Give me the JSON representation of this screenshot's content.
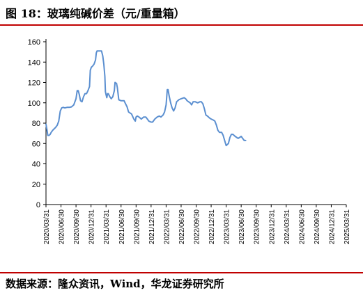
{
  "header": {
    "title": "图 18：玻璃纯碱价差（元/重量箱）"
  },
  "footer": {
    "source": "数据来源：隆众资讯，Wind，华龙证券研究所"
  },
  "colors": {
    "line": "#5b8fd0",
    "accent_rule": "#c00000",
    "axis": "#000000"
  },
  "chart_data": {
    "type": "line",
    "title": "",
    "xlabel": "",
    "ylabel": "",
    "ylim": [
      0,
      160
    ],
    "yticks": [
      0,
      20,
      40,
      60,
      80,
      100,
      120,
      140,
      160
    ],
    "grid": false,
    "legend": "none",
    "x_tick_labels": [
      "2020/03/31",
      "2020/06/30",
      "2020/09/30",
      "2020/12/31",
      "2021/03/31",
      "2021/06/30",
      "2021/09/30",
      "2021/12/31",
      "2022/03/31",
      "2022/06/30",
      "2022/09/30",
      "2022/12/31",
      "2023/03/31",
      "2023/06/30",
      "2023/09/30",
      "2023/12/31",
      "2024/03/31",
      "2024/06/30",
      "2024/09/30",
      "2024/12/31",
      "2025/03/31"
    ],
    "series": [
      {
        "name": "",
        "values": [
          [
            0.0,
            79
          ],
          [
            0.06,
            74
          ],
          [
            0.12,
            68
          ],
          [
            0.2,
            68
          ],
          [
            0.28,
            69
          ],
          [
            0.35,
            71
          ],
          [
            0.45,
            73
          ],
          [
            0.55,
            74.5
          ],
          [
            0.65,
            76
          ],
          [
            0.75,
            78
          ],
          [
            0.85,
            82
          ],
          [
            0.95,
            92
          ],
          [
            1.05,
            95
          ],
          [
            1.15,
            95.5
          ],
          [
            1.25,
            95
          ],
          [
            1.4,
            95.5
          ],
          [
            1.55,
            95.5
          ],
          [
            1.7,
            96
          ],
          [
            1.85,
            98
          ],
          [
            2.0,
            104
          ],
          [
            2.08,
            112
          ],
          [
            2.15,
            112
          ],
          [
            2.22,
            108
          ],
          [
            2.3,
            102
          ],
          [
            2.4,
            101
          ],
          [
            2.5,
            106
          ],
          [
            2.6,
            109
          ],
          [
            2.7,
            109
          ],
          [
            2.8,
            112
          ],
          [
            2.9,
            116
          ],
          [
            2.95,
            132
          ],
          [
            3.02,
            135
          ],
          [
            3.1,
            136
          ],
          [
            3.2,
            138
          ],
          [
            3.3,
            142
          ],
          [
            3.35,
            149
          ],
          [
            3.4,
            151
          ],
          [
            3.5,
            151
          ],
          [
            3.6,
            151
          ],
          [
            3.7,
            151
          ],
          [
            3.78,
            146
          ],
          [
            3.85,
            138
          ],
          [
            3.92,
            126
          ],
          [
            3.96,
            111
          ],
          [
            4.0,
            108
          ],
          [
            4.05,
            105
          ],
          [
            4.1,
            109
          ],
          [
            4.15,
            109
          ],
          [
            4.25,
            106
          ],
          [
            4.35,
            104
          ],
          [
            4.45,
            106
          ],
          [
            4.55,
            112
          ],
          [
            4.6,
            120
          ],
          [
            4.7,
            119
          ],
          [
            4.75,
            115
          ],
          [
            4.85,
            103
          ],
          [
            5.0,
            102
          ],
          [
            5.2,
            102
          ],
          [
            5.3,
            99
          ],
          [
            5.4,
            96
          ],
          [
            5.5,
            91
          ],
          [
            5.6,
            90
          ],
          [
            5.7,
            89
          ],
          [
            5.85,
            84
          ],
          [
            5.95,
            82
          ],
          [
            6.0,
            86
          ],
          [
            6.08,
            87
          ],
          [
            6.2,
            86
          ],
          [
            6.35,
            84
          ],
          [
            6.5,
            86
          ],
          [
            6.65,
            86
          ],
          [
            6.75,
            84
          ],
          [
            6.85,
            82
          ],
          [
            7.0,
            81
          ],
          [
            7.1,
            81
          ],
          [
            7.25,
            84
          ],
          [
            7.4,
            86
          ],
          [
            7.55,
            87
          ],
          [
            7.65,
            86
          ],
          [
            7.8,
            88
          ],
          [
            7.9,
            91
          ],
          [
            8.0,
            98
          ],
          [
            8.08,
            113
          ],
          [
            8.13,
            113
          ],
          [
            8.2,
            107
          ],
          [
            8.3,
            100
          ],
          [
            8.4,
            95
          ],
          [
            8.5,
            92
          ],
          [
            8.6,
            95
          ],
          [
            8.7,
            101
          ],
          [
            8.85,
            103
          ],
          [
            9.0,
            104
          ],
          [
            9.2,
            105
          ],
          [
            9.3,
            104
          ],
          [
            9.4,
            102
          ],
          [
            9.5,
            101
          ],
          [
            9.6,
            100
          ],
          [
            9.7,
            98
          ],
          [
            9.8,
            101
          ],
          [
            9.95,
            101
          ],
          [
            10.1,
            100
          ],
          [
            10.25,
            101
          ],
          [
            10.35,
            101
          ],
          [
            10.45,
            99
          ],
          [
            10.55,
            94
          ],
          [
            10.65,
            88
          ],
          [
            10.75,
            87
          ],
          [
            10.9,
            85
          ],
          [
            11.0,
            84
          ],
          [
            11.15,
            83
          ],
          [
            11.25,
            82
          ],
          [
            11.35,
            78
          ],
          [
            11.45,
            73
          ],
          [
            11.55,
            71
          ],
          [
            11.7,
            71
          ],
          [
            11.8,
            68
          ],
          [
            11.9,
            63
          ],
          [
            12.0,
            58
          ],
          [
            12.15,
            60
          ],
          [
            12.25,
            66
          ],
          [
            12.35,
            69
          ],
          [
            12.45,
            69
          ],
          [
            12.6,
            67
          ],
          [
            12.7,
            66
          ],
          [
            12.8,
            65
          ],
          [
            12.9,
            66
          ],
          [
            13.0,
            67
          ],
          [
            13.1,
            65
          ],
          [
            13.2,
            63
          ],
          [
            13.3,
            63
          ]
        ]
      }
    ]
  }
}
